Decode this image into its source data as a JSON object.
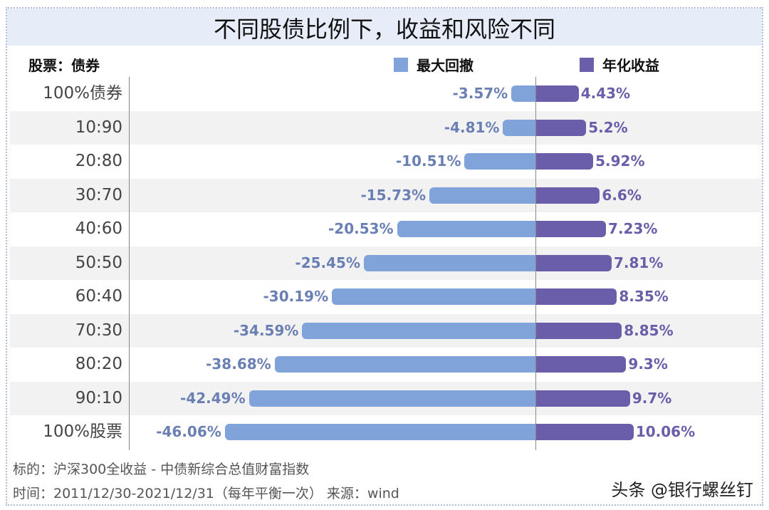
{
  "title": "不同股债比例下，收益和风险不同",
  "axis_label": "股票：债券",
  "legend": [
    {
      "label": "最大回撤",
      "color": "#80a3d9"
    },
    {
      "label": "年化收益",
      "color": "#6a5eaa"
    }
  ],
  "colors": {
    "drawdown_bar": "#80a3d9",
    "return_bar": "#6a5eaa",
    "drawdown_text": "#6a7fb3",
    "return_text": "#6a5eaa",
    "shade": "#f2f2f2",
    "title_bg": "#e7edf8"
  },
  "rows": [
    {
      "label": "100%债券",
      "drawdown": "-3.57%",
      "return": "4.43%"
    },
    {
      "label": "10:90",
      "drawdown": "-4.81%",
      "return": "5.2%"
    },
    {
      "label": "20:80",
      "drawdown": "-10.51%",
      "return": "5.92%"
    },
    {
      "label": "30:70",
      "drawdown": "-15.73%",
      "return": "6.6%"
    },
    {
      "label": "40:60",
      "drawdown": "-20.53%",
      "return": "7.23%"
    },
    {
      "label": "50:50",
      "drawdown": "-25.45%",
      "return": "7.81%"
    },
    {
      "label": "60:40",
      "drawdown": "-30.19%",
      "return": "8.35%"
    },
    {
      "label": "70:30",
      "drawdown": "-34.59%",
      "return": "8.85%"
    },
    {
      "label": "80:20",
      "drawdown": "-38.68%",
      "return": "9.3%"
    },
    {
      "label": "90:10",
      "drawdown": "-42.49%",
      "return": "9.7%"
    },
    {
      "label": "100%股票",
      "drawdown": "-46.06%",
      "return": "10.06%"
    }
  ],
  "footer": {
    "line1": "标的：沪深300全收益 - 中债新综合总值财富指数",
    "line2": "时间：2011/12/30-2021/12/31（每年平衡一次）   来源：wind"
  },
  "watermark": "头条 @银行螺丝钉",
  "chart_data": {
    "type": "bar",
    "orientation": "horizontal-diverging",
    "title": "不同股债比例下，收益和风险不同",
    "ylabel": "股票：债券",
    "categories": [
      "100%债券",
      "10:90",
      "20:80",
      "30:70",
      "40:60",
      "50:50",
      "60:40",
      "70:30",
      "80:20",
      "90:10",
      "100%股票"
    ],
    "series": [
      {
        "name": "最大回撤",
        "color": "#80a3d9",
        "values": [
          -3.57,
          -4.81,
          -10.51,
          -15.73,
          -20.53,
          -25.45,
          -30.19,
          -34.59,
          -38.68,
          -42.49,
          -46.06
        ]
      },
      {
        "name": "年化收益",
        "color": "#6a5eaa",
        "values": [
          4.43,
          5.2,
          5.92,
          6.6,
          7.23,
          7.81,
          8.35,
          8.85,
          9.3,
          9.7,
          10.06
        ]
      }
    ],
    "unit": "%",
    "legend_position": "top",
    "grid": false
  }
}
